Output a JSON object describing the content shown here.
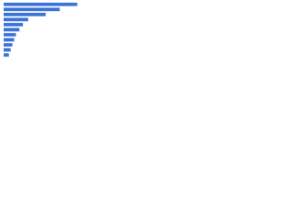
{
  "chart_data": {
    "type": "bar",
    "orientation": "horizontal",
    "categories": [
      null,
      null,
      null,
      null,
      null,
      null,
      null,
      null,
      null,
      null,
      null
    ],
    "values": [
      84,
      64,
      48,
      28,
      22,
      18,
      14,
      12,
      10,
      8,
      6
    ],
    "color": "#3b73d9",
    "xlim": [
      0,
      100
    ]
  }
}
